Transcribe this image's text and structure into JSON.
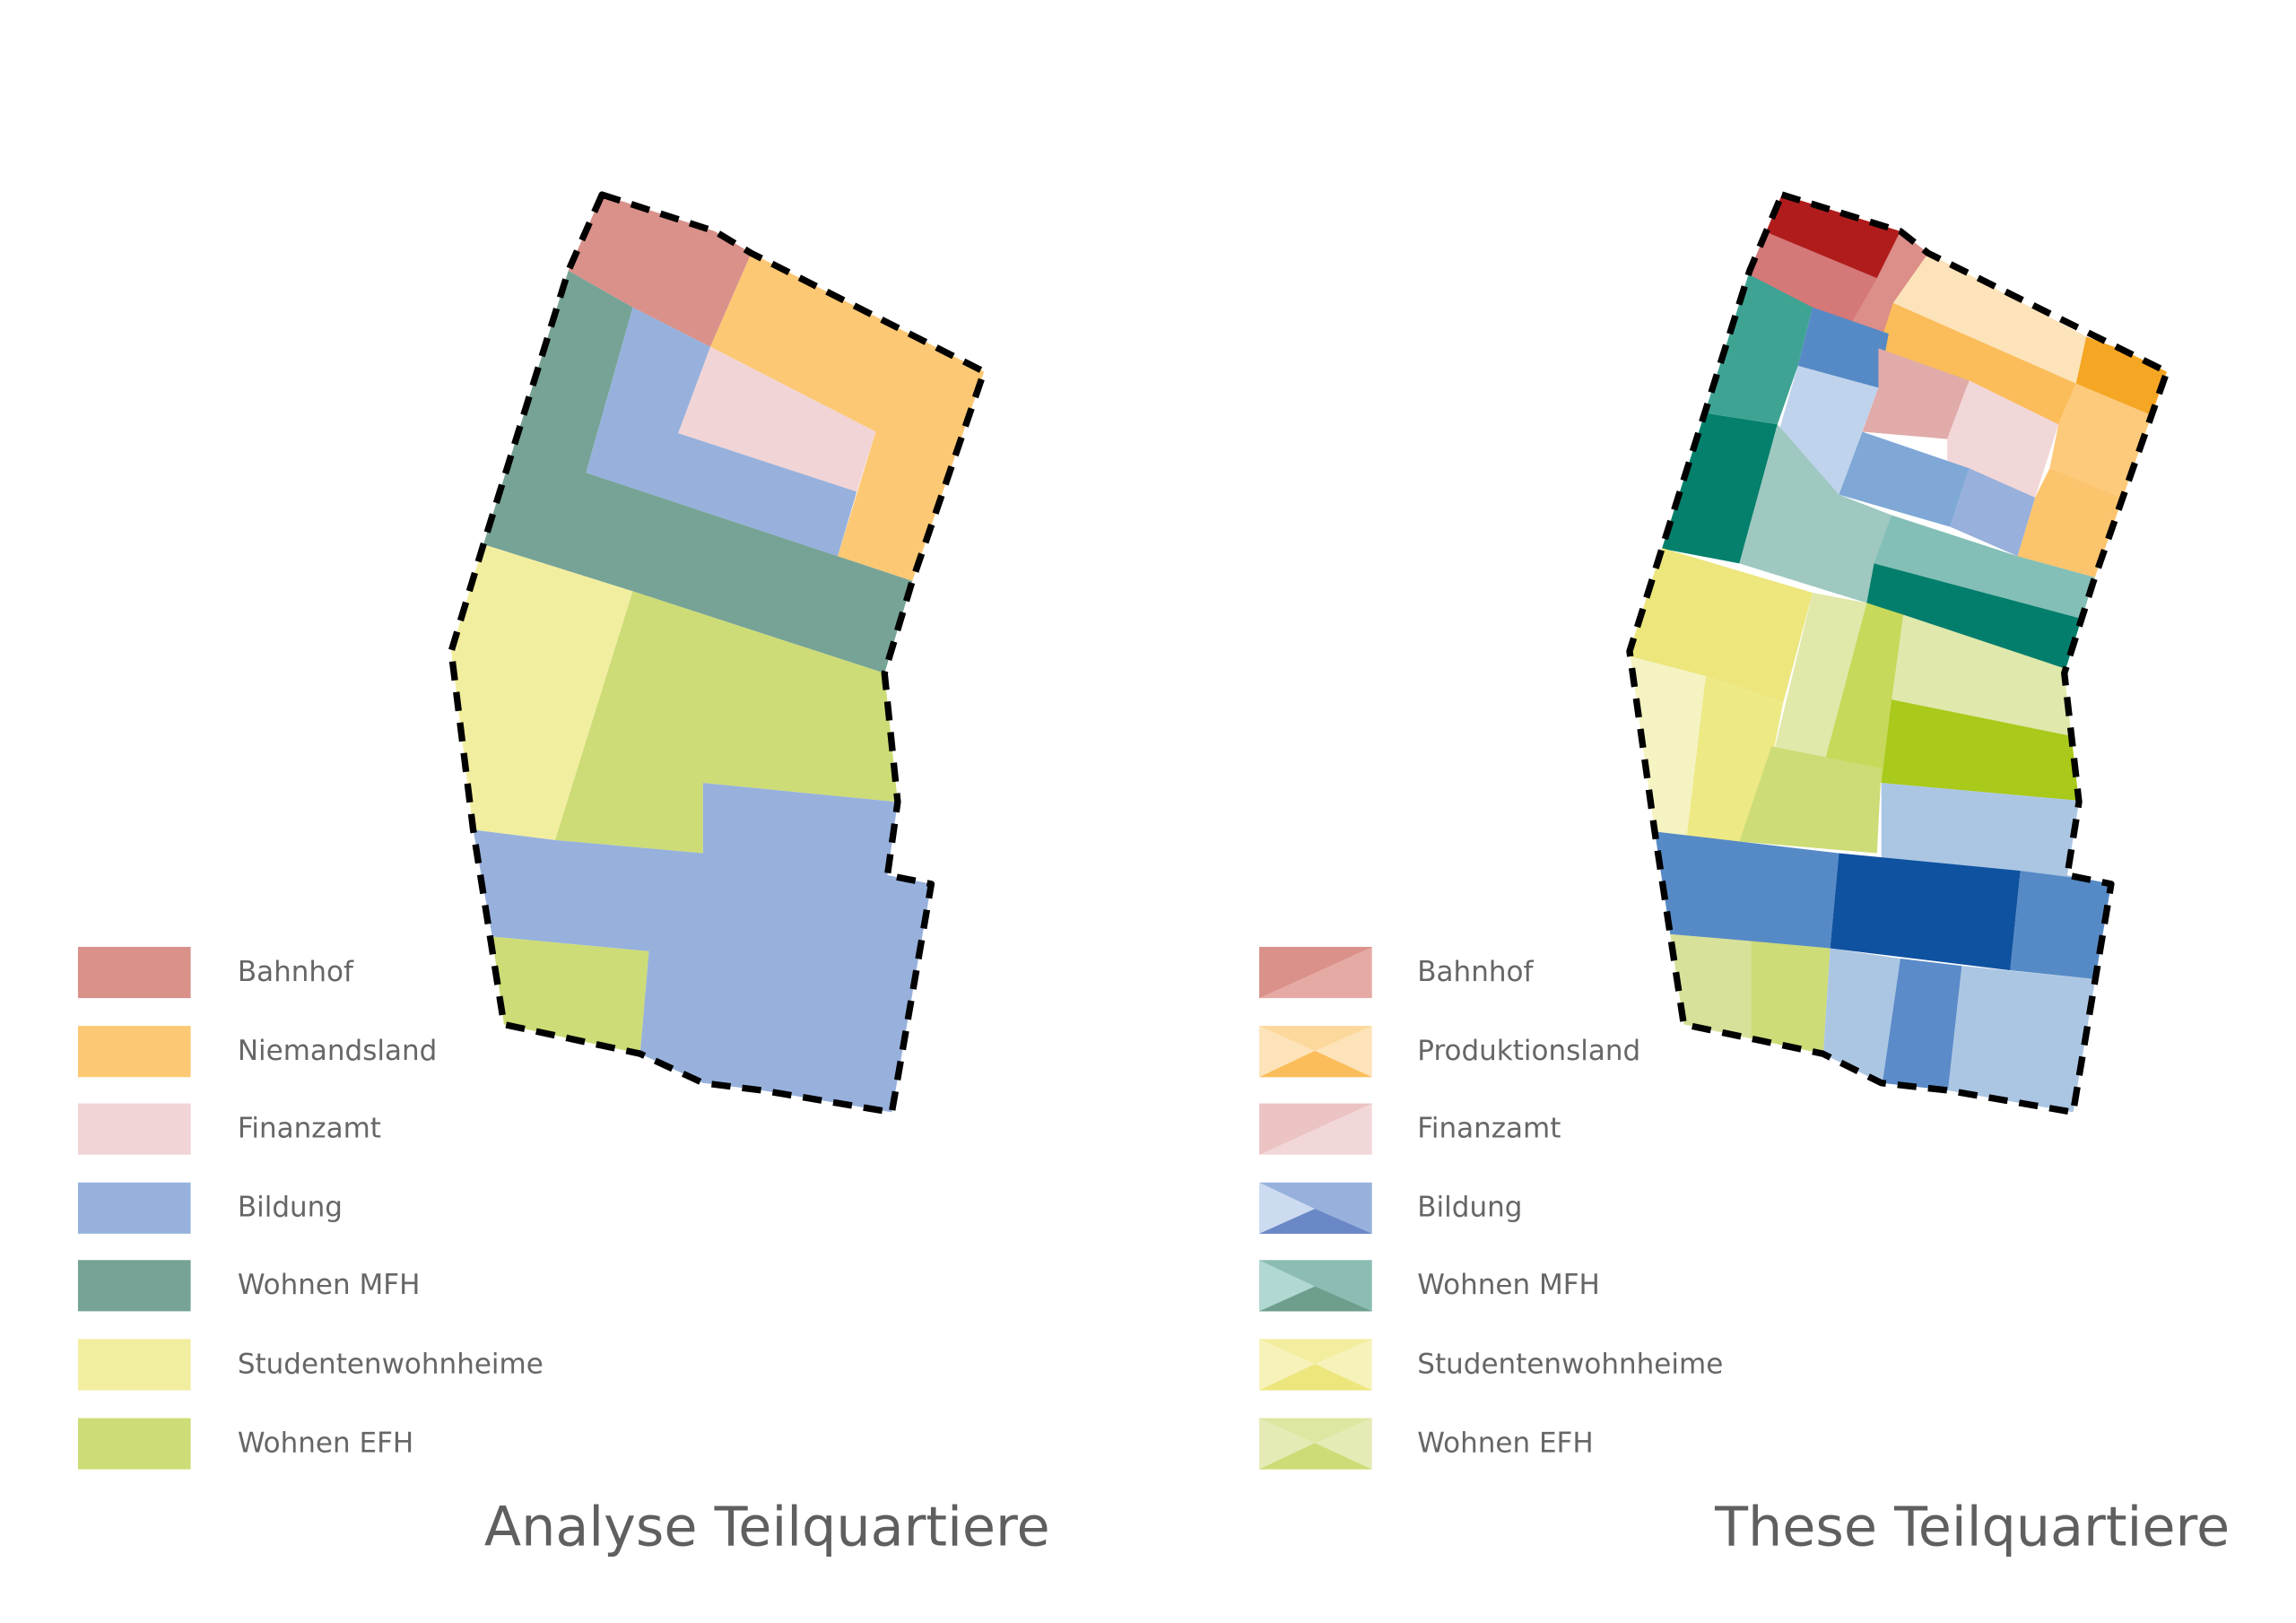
{
  "panels": [
    {
      "title": "Analyse Teilquartiere",
      "legend": [
        "Bahnhof",
        "Niemandsland",
        "Finanzamt",
        "Bildung",
        "Wohnen MFH",
        "Studentenwohnheime",
        "Wohnen EFH"
      ]
    },
    {
      "title": "These Teilquartiere",
      "legend": [
        "Bahnhof",
        "Produktionsland",
        "Finanzamt",
        "Bildung",
        "Wohnen MFH",
        "Studentenwohnheime",
        "Wohnen EFH"
      ]
    }
  ]
}
